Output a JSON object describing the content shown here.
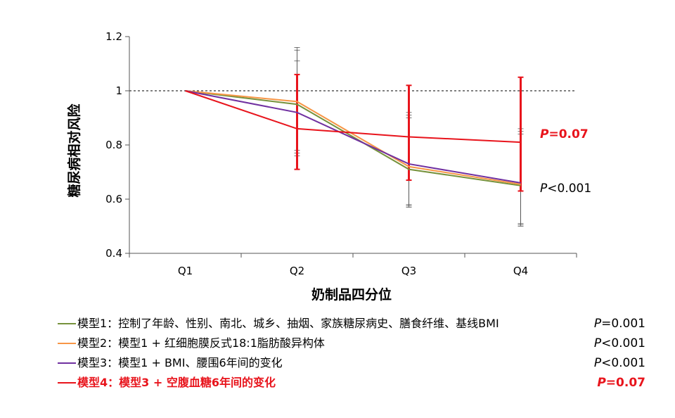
{
  "chart_data": {
    "type": "line",
    "categories": [
      "Q1",
      "Q2",
      "Q3",
      "Q4"
    ],
    "xlabel": "奶制品四分位",
    "ylabel": "糖尿病相对风险",
    "ylim": [
      0.4,
      1.2
    ],
    "yticks": [
      "0.4",
      "0.6",
      "0.8",
      "1",
      "1.2"
    ],
    "reference_line": 1,
    "series": [
      {
        "name": "模型1：控制了年龄、性别、南北、城乡、抽烟、家族糖尿病史、膳食纤维、基线BMI",
        "p_label": "P",
        "p_value": "=0.001",
        "values": [
          1.0,
          0.95,
          0.71,
          0.65
        ],
        "err_low": [
          null,
          0.77,
          0.58,
          0.51
        ],
        "err_high": [
          null,
          1.16,
          0.91,
          0.85
        ],
        "color": "#76923c"
      },
      {
        "name": "模型2：模型1 + 红细胞膜反式18:1脂肪酸异构体",
        "p_label": "P",
        "p_value": "<0.001",
        "values": [
          1.0,
          0.96,
          0.72,
          0.655
        ],
        "err_low": [
          null,
          0.78,
          0.575,
          0.505
        ],
        "err_high": [
          null,
          1.15,
          0.9,
          0.84
        ],
        "color": "#f79646"
      },
      {
        "name": "模型3：模型1 + BMI、腰围6年间的变化",
        "p_label": "P",
        "p_value": "<0.001",
        "values": [
          1.0,
          0.92,
          0.73,
          0.66
        ],
        "err_low": [
          null,
          0.76,
          0.57,
          0.5
        ],
        "err_high": [
          null,
          1.11,
          0.92,
          0.86
        ],
        "color": "#7030a0"
      },
      {
        "name": "模型4：模型3 + 空腹血糖6年间的变化",
        "p_label": "P",
        "p_value": "=0.07",
        "values": [
          1.0,
          0.86,
          0.83,
          0.81
        ],
        "err_low": [
          null,
          0.71,
          0.67,
          0.63
        ],
        "err_high": [
          null,
          1.06,
          1.02,
          1.05
        ],
        "color": "#e8141c"
      }
    ],
    "annotations": [
      {
        "series": 3,
        "label": "P",
        "value": "=0.07"
      },
      {
        "series": 2,
        "label": "P",
        "value": "<0.001"
      }
    ]
  }
}
